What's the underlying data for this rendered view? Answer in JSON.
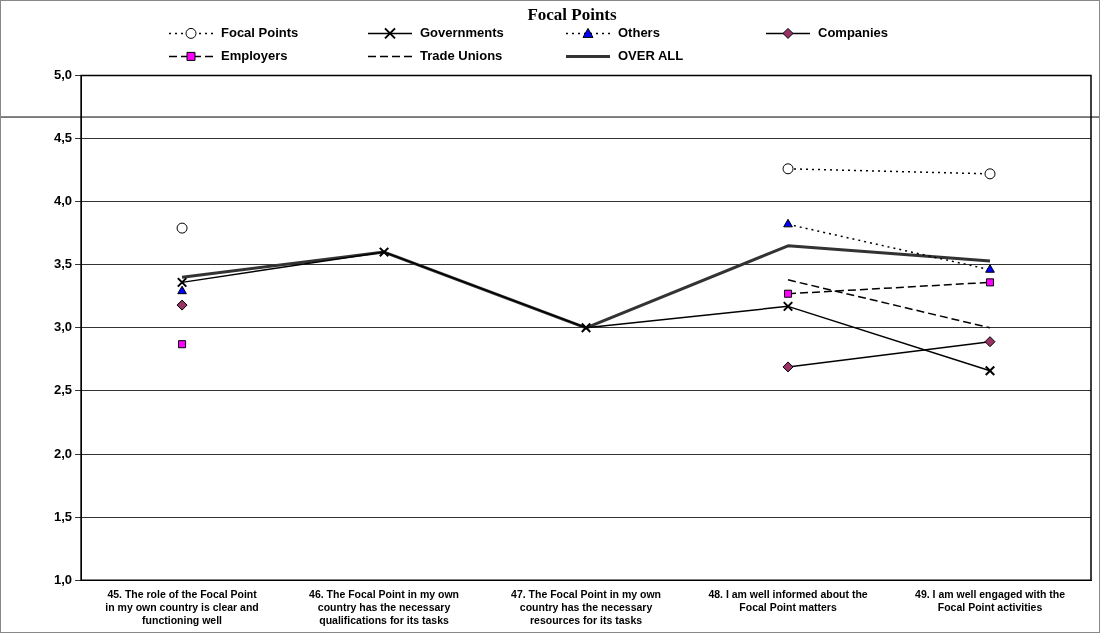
{
  "chart_data": {
    "type": "line",
    "title": "Focal Points",
    "categories": [
      "45. The role of the Focal Point in my own country is clear and functioning well",
      "46. The Focal Point in my own country has the necessary qualifications for its tasks",
      "47. The Focal Point in my own country has the necessary resources for its tasks",
      "48. I am well informed about the Focal Point matters",
      "49. I am well engaged with the Focal Point activities"
    ],
    "series": [
      {
        "name": "Focal Points",
        "color": "#000000",
        "marker": "circle",
        "line_style": "dotted",
        "values": [
          3.79,
          null,
          null,
          4.26,
          4.22
        ]
      },
      {
        "name": "Governments",
        "color": "#000000",
        "marker": "cross",
        "line_style": "solid",
        "values": [
          3.36,
          3.6,
          3.0,
          3.17,
          2.66
        ]
      },
      {
        "name": "Others",
        "color": "#0000ff",
        "marker": "triangle",
        "line_style": "dotted",
        "values": [
          3.29,
          null,
          null,
          3.82,
          3.46
        ]
      },
      {
        "name": "Companies",
        "color": "#993366",
        "marker": "diamond",
        "line_style": "solid",
        "values": [
          3.18,
          null,
          null,
          2.69,
          2.89
        ]
      },
      {
        "name": "Employers",
        "color": "#ff00ff",
        "marker": "square",
        "line_style": "dashed",
        "values": [
          2.87,
          null,
          null,
          3.27,
          3.36
        ]
      },
      {
        "name": "Trade Unions",
        "color": "#000000",
        "marker": "none",
        "line_style": "dashed",
        "values": [
          null,
          null,
          null,
          3.38,
          3.0
        ]
      },
      {
        "name": "OVER ALL",
        "color": "#333333",
        "marker": "none",
        "line_style": "solid",
        "values": [
          3.4,
          3.6,
          3.0,
          3.65,
          3.53
        ]
      }
    ],
    "ylim": [
      1,
      5
    ],
    "yticks": [
      {
        "value": 1,
        "label": "1,0"
      },
      {
        "value": 1.5,
        "label": "1,5"
      },
      {
        "value": 2,
        "label": "2,0"
      },
      {
        "value": 2.5,
        "label": "2,5"
      },
      {
        "value": 3,
        "label": "3,0"
      },
      {
        "value": 3.5,
        "label": "3,5"
      },
      {
        "value": 4,
        "label": "4,0"
      },
      {
        "value": 4.5,
        "label": "4,5"
      },
      {
        "value": 5,
        "label": "5,0"
      }
    ],
    "ref_lines": [
      {
        "axis": "y",
        "value": 4.67,
        "color": "#000000"
      }
    ],
    "grid": "y",
    "legend": "top"
  }
}
